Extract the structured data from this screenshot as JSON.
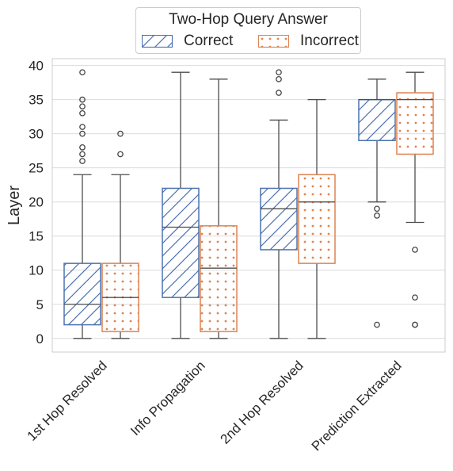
{
  "chart_data": {
    "type": "box",
    "ylabel": "Layer",
    "ylim": [
      -2,
      41
    ],
    "yticks": [
      0,
      5,
      10,
      15,
      20,
      25,
      30,
      35,
      40
    ],
    "categories": [
      "1st Hop Resolved",
      "Info Propagation",
      "2nd Hop Resolved",
      "Prediction Extracted"
    ],
    "legend": {
      "title": "Two-Hop Query Answer",
      "position": "top-center"
    },
    "grid": true,
    "series": [
      {
        "name": "Correct",
        "color": "#4c72b0",
        "pattern": "hatch",
        "boxes": [
          {
            "whisker_low": 0,
            "q1": 2,
            "median": 5,
            "q3": 11,
            "whisker_high": 24,
            "outliers": [
              26,
              27,
              28,
              30,
              31,
              33,
              34,
              35,
              39
            ]
          },
          {
            "whisker_low": 0,
            "q1": 6,
            "median": 16.3,
            "q3": 22,
            "whisker_high": 39,
            "outliers": []
          },
          {
            "whisker_low": 0,
            "q1": 13,
            "median": 19,
            "q3": 22,
            "whisker_high": 32,
            "outliers": [
              36,
              38,
              39
            ]
          },
          {
            "whisker_low": 20,
            "q1": 29,
            "median": 35,
            "q3": 35,
            "whisker_high": 38,
            "outliers": [
              2,
              18,
              19
            ]
          }
        ]
      },
      {
        "name": "Incorrect",
        "color": "#dd8452",
        "pattern": "dots",
        "boxes": [
          {
            "whisker_low": 0,
            "q1": 1,
            "median": 6,
            "q3": 11,
            "whisker_high": 24,
            "outliers": [
              27,
              30
            ]
          },
          {
            "whisker_low": 0,
            "q1": 1,
            "median": 10.3,
            "q3": 16.5,
            "whisker_high": 38,
            "outliers": []
          },
          {
            "whisker_low": 0,
            "q1": 11,
            "median": 20,
            "q3": 24,
            "whisker_high": 35,
            "outliers": []
          },
          {
            "whisker_low": 17,
            "q1": 27,
            "median": 35,
            "q3": 36,
            "whisker_high": 39,
            "outliers": [
              2,
              2,
              6,
              13
            ]
          }
        ]
      }
    ]
  }
}
